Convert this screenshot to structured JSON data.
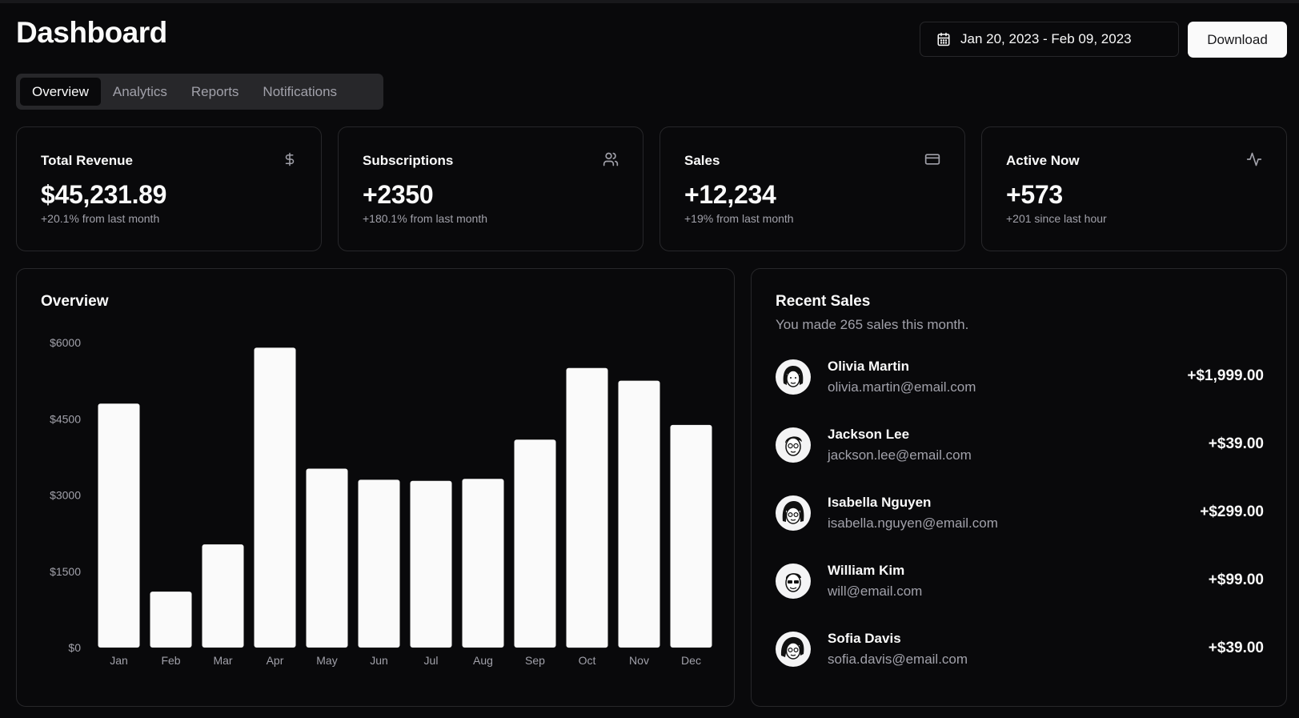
{
  "header": {
    "title": "Dashboard",
    "date_range": "Jan 20, 2023 - Feb 09, 2023",
    "download_label": "Download"
  },
  "tabs": [
    {
      "label": "Overview",
      "active": true
    },
    {
      "label": "Analytics",
      "active": false
    },
    {
      "label": "Reports",
      "active": false
    },
    {
      "label": "Notifications",
      "active": false
    }
  ],
  "stats": [
    {
      "label": "Total Revenue",
      "value": "$45,231.89",
      "sub": "+20.1% from last month",
      "icon": "dollar-icon"
    },
    {
      "label": "Subscriptions",
      "value": "+2350",
      "sub": "+180.1% from last month",
      "icon": "users-icon"
    },
    {
      "label": "Sales",
      "value": "+12,234",
      "sub": "+19% from last month",
      "icon": "credit-card-icon"
    },
    {
      "label": "Active Now",
      "value": "+573",
      "sub": "+201 since last hour",
      "icon": "activity-icon"
    }
  ],
  "overview": {
    "title": "Overview"
  },
  "chart_data": {
    "type": "bar",
    "title": "Overview",
    "categories": [
      "Jan",
      "Feb",
      "Mar",
      "Apr",
      "May",
      "Jun",
      "Jul",
      "Aug",
      "Sep",
      "Oct",
      "Nov",
      "Dec"
    ],
    "values": [
      4800,
      1100,
      2030,
      5900,
      3520,
      3300,
      3280,
      3320,
      4090,
      5500,
      5250,
      4380
    ],
    "yticks": [
      "$0",
      "$1500",
      "$3000",
      "$4500",
      "$6000"
    ],
    "ytick_values": [
      0,
      1500,
      3000,
      4500,
      6000
    ],
    "ylim": [
      0,
      6000
    ],
    "xlabel": "",
    "ylabel": "",
    "bar_color": "#fafafa"
  },
  "recent_sales": {
    "title": "Recent Sales",
    "description": "You made 265 sales this month.",
    "items": [
      {
        "name": "Olivia Martin",
        "email": "olivia.martin@email.com",
        "amount": "+$1,999.00"
      },
      {
        "name": "Jackson Lee",
        "email": "jackson.lee@email.com",
        "amount": "+$39.00"
      },
      {
        "name": "Isabella Nguyen",
        "email": "isabella.nguyen@email.com",
        "amount": "+$299.00"
      },
      {
        "name": "William Kim",
        "email": "will@email.com",
        "amount": "+$99.00"
      },
      {
        "name": "Sofia Davis",
        "email": "sofia.davis@email.com",
        "amount": "+$39.00"
      }
    ]
  },
  "colors": {
    "background": "#09090b",
    "border": "#27272a",
    "foreground": "#fafafa",
    "muted": "#a1a1aa"
  }
}
